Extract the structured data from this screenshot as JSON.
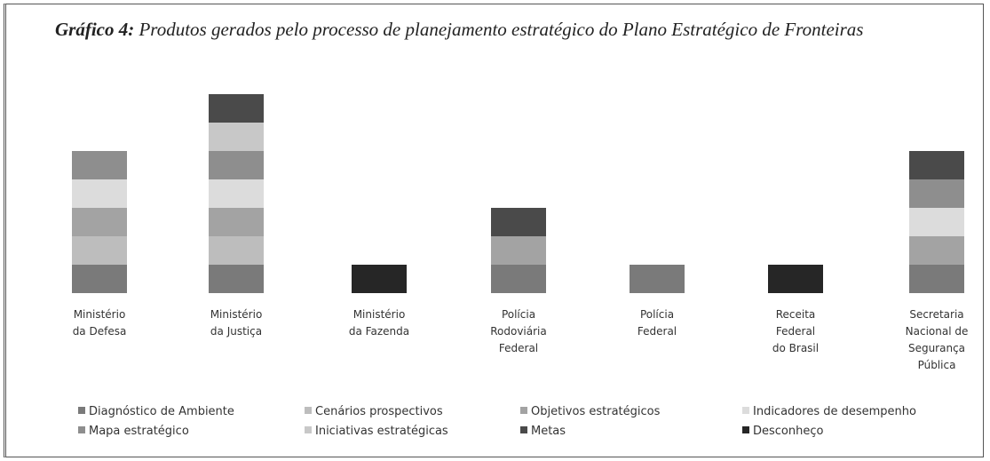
{
  "chart_data": {
    "type": "stacked_bar",
    "title_label": "Gráfico 4:",
    "title": "Produtos gerados pelo processo de planejamento estratégico do Plano Estratégico de Fronteiras",
    "categories": [
      "Ministério\nda Defesa",
      "Ministério\nda Justiça",
      "Ministério\nda Fazenda",
      "Polícia\nRodoviária\nFederal",
      "Polícia\nFederal",
      "Receita\nFederal\ndo Brasil",
      "Secretaria\nNacional de\nSegurança\nPública"
    ],
    "series": [
      {
        "name": "Diagnóstico de Ambiente",
        "color": "#7a7a7a",
        "values": [
          1,
          1,
          0,
          1,
          1,
          0,
          1
        ]
      },
      {
        "name": "Cenários prospectivos",
        "color": "#bdbdbd",
        "values": [
          1,
          1,
          0,
          0,
          0,
          0,
          0
        ]
      },
      {
        "name": "Objetivos estratégicos",
        "color": "#a3a3a3",
        "values": [
          1,
          1,
          0,
          1,
          0,
          0,
          1
        ]
      },
      {
        "name": "Indicadores de desempenho",
        "color": "#dcdcdc",
        "values": [
          1,
          1,
          0,
          0,
          0,
          0,
          1
        ]
      },
      {
        "name": "Mapa estratégico",
        "color": "#8e8e8e",
        "values": [
          1,
          1,
          0,
          0,
          0,
          0,
          1
        ]
      },
      {
        "name": "Iniciativas estratégicas",
        "color": "#c8c8c8",
        "values": [
          0,
          1,
          0,
          0,
          0,
          0,
          0
        ]
      },
      {
        "name": "Metas",
        "color": "#4a4a4a",
        "values": [
          0,
          1,
          0,
          1,
          0,
          0,
          1
        ]
      },
      {
        "name": "Desconheço",
        "color": "#262626",
        "values": [
          0,
          0,
          1,
          0,
          0,
          1,
          0
        ]
      }
    ]
  }
}
